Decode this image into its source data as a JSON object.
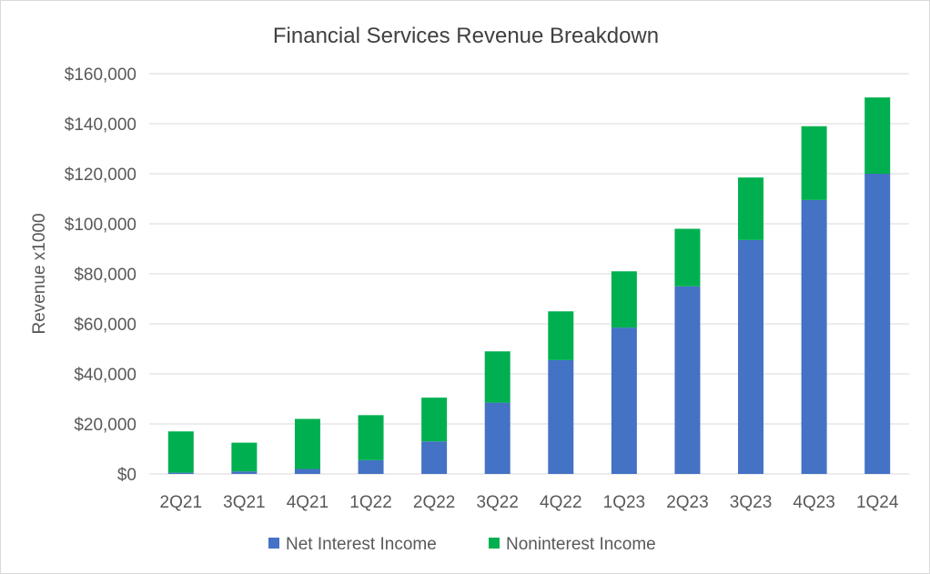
{
  "chart_data": {
    "type": "bar",
    "stacked": true,
    "title": "Financial Services Revenue Breakdown",
    "xlabel": "",
    "ylabel": "Revenue x1000",
    "categories": [
      "2Q21",
      "3Q21",
      "4Q21",
      "1Q22",
      "2Q22",
      "3Q22",
      "4Q22",
      "1Q23",
      "2Q23",
      "3Q23",
      "4Q23",
      "1Q24"
    ],
    "series": [
      {
        "name": "Net Interest Income",
        "color": "#4472c4",
        "values": [
          500,
          1000,
          2000,
          5500,
          13000,
          28500,
          45500,
          58500,
          75000,
          93500,
          109500,
          120000
        ]
      },
      {
        "name": "Noninterest Income",
        "color": "#00b050",
        "values": [
          16500,
          11500,
          20000,
          18000,
          17500,
          20500,
          19500,
          22500,
          23000,
          25000,
          29500,
          30500
        ]
      }
    ],
    "ylim": [
      0,
      160000
    ],
    "yticks": [
      0,
      20000,
      40000,
      60000,
      80000,
      100000,
      120000,
      140000,
      160000
    ],
    "ytick_labels": [
      "$0",
      "$20,000",
      "$40,000",
      "$60,000",
      "$80,000",
      "$100,000",
      "$120,000",
      "$140,000",
      "$160,000"
    ],
    "grid": true,
    "legend_position": "bottom"
  }
}
